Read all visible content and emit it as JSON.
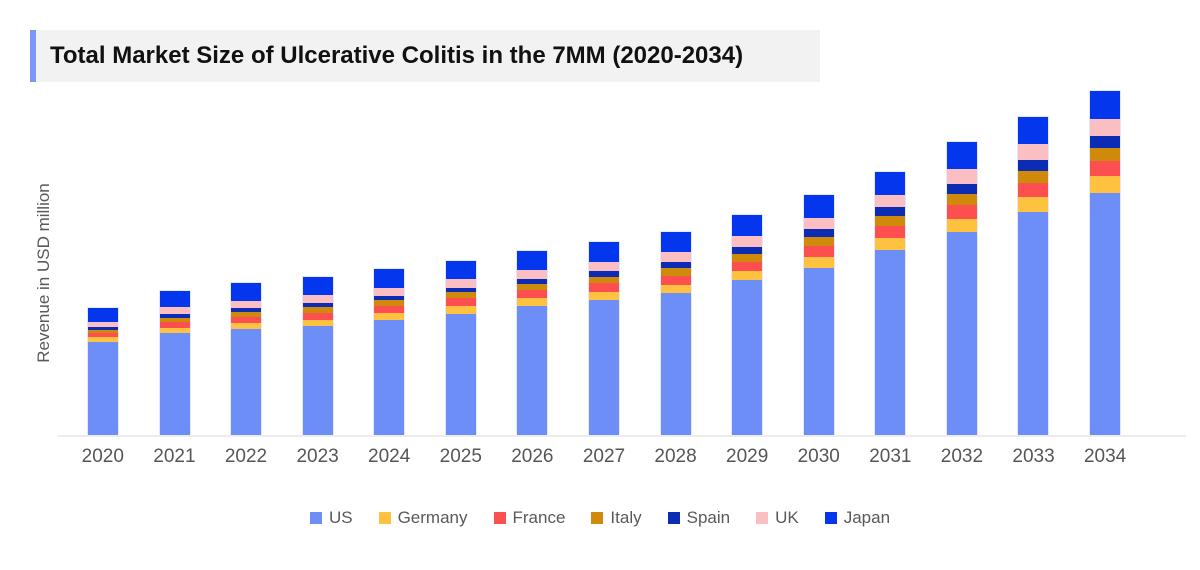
{
  "colors": {
    "accent_bar": "#7B97F7",
    "title_background": "#F2F2F2",
    "title_text": "#111111",
    "axis_text": "#595959",
    "axis_line": "#ECECEC"
  },
  "chart_data": {
    "type": "bar",
    "stacked": true,
    "title": "Total Market Size of Ulcerative Colitis in the 7MM (2020-2034)",
    "xlabel": "",
    "ylabel": "Revenue in USD million",
    "y_axis_ticks_shown": false,
    "grid": false,
    "legend_position": "bottom",
    "value_units": "relative (no numeric axis shown)",
    "categories": [
      "2020",
      "2021",
      "2022",
      "2023",
      "2024",
      "2025",
      "2026",
      "2027",
      "2028",
      "2029",
      "2030",
      "2031",
      "2032",
      "2033",
      "2034"
    ],
    "series": [
      {
        "name": "US",
        "color": "#6E8EF7",
        "values": [
          93,
          102,
          106,
          109,
          115,
          121,
          129,
          135,
          142,
          155,
          167,
          185,
          203,
          223,
          242
        ]
      },
      {
        "name": "Germany",
        "color": "#FFC240",
        "values": [
          5,
          5,
          6,
          6,
          7,
          8,
          8,
          8,
          8,
          9,
          11,
          12,
          13,
          15,
          17
        ]
      },
      {
        "name": "France",
        "color": "#FD4F50",
        "values": [
          4,
          6,
          6,
          7,
          7,
          8,
          8,
          9,
          9,
          9,
          11,
          12,
          14,
          14,
          15
        ]
      },
      {
        "name": "Italy",
        "color": "#CF8A0B",
        "values": [
          3,
          4,
          5,
          6,
          6,
          6,
          6,
          6,
          8,
          8,
          9,
          10,
          11,
          12,
          13
        ]
      },
      {
        "name": "Spain",
        "color": "#0C2DB3",
        "values": [
          3,
          4,
          4,
          4,
          4,
          4,
          5,
          6,
          6,
          7,
          8,
          9,
          10,
          11,
          12
        ]
      },
      {
        "name": "UK",
        "color": "#FBBFC3",
        "values": [
          5,
          7,
          7,
          8,
          8,
          9,
          9,
          9,
          10,
          11,
          11,
          12,
          15,
          16,
          17
        ]
      },
      {
        "name": "Japan",
        "color": "#0437ED",
        "values": [
          14,
          16,
          18,
          18,
          19,
          18,
          19,
          20,
          20,
          21,
          23,
          23,
          27,
          27,
          28
        ]
      }
    ]
  }
}
